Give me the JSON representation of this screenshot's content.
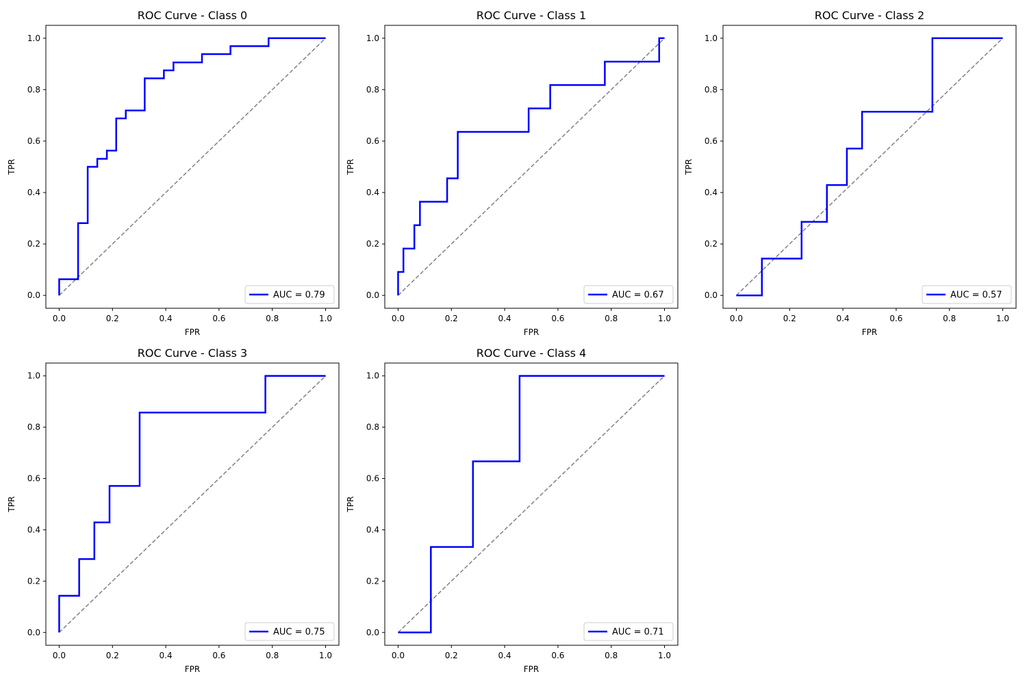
{
  "chart_data": [
    {
      "type": "line",
      "title": "ROC Curve - Class 0",
      "xlabel": "FPR",
      "ylabel": "TPR",
      "xlim": [
        -0.05,
        1.05
      ],
      "ylim": [
        -0.05,
        1.05
      ],
      "xticks": [
        "0.0",
        "0.2",
        "0.4",
        "0.6",
        "0.8",
        "1.0"
      ],
      "yticks": [
        "0.0",
        "0.2",
        "0.4",
        "0.6",
        "0.8",
        "1.0"
      ],
      "legend_position": "lower-right",
      "series": [
        {
          "name": "AUC = 0.79",
          "color": "#0000ff",
          "x": [
            0,
            0,
            0.071,
            0.071,
            0.107,
            0.107,
            0.143,
            0.143,
            0.179,
            0.179,
            0.214,
            0.214,
            0.25,
            0.25,
            0.321,
            0.321,
            0.393,
            0.393,
            0.429,
            0.429,
            0.536,
            0.536,
            0.643,
            0.643,
            0.786,
            0.786,
            1.0
          ],
          "y": [
            0,
            0.063,
            0.063,
            0.281,
            0.281,
            0.5,
            0.5,
            0.531,
            0.531,
            0.563,
            0.563,
            0.688,
            0.688,
            0.719,
            0.719,
            0.844,
            0.844,
            0.875,
            0.875,
            0.906,
            0.906,
            0.938,
            0.938,
            0.969,
            0.969,
            1.0,
            1.0
          ]
        },
        {
          "name": "",
          "color": "#808080",
          "style": "dashed",
          "x": [
            0,
            1
          ],
          "y": [
            0,
            1
          ]
        }
      ]
    },
    {
      "type": "line",
      "title": "ROC Curve - Class 1",
      "xlabel": "FPR",
      "ylabel": "TPR",
      "xlim": [
        -0.05,
        1.05
      ],
      "ylim": [
        -0.05,
        1.05
      ],
      "xticks": [
        "0.0",
        "0.2",
        "0.4",
        "0.6",
        "0.8",
        "1.0"
      ],
      "yticks": [
        "0.0",
        "0.2",
        "0.4",
        "0.6",
        "0.8",
        "1.0"
      ],
      "legend_position": "lower-right",
      "series": [
        {
          "name": "AUC = 0.67",
          "color": "#0000ff",
          "x": [
            0,
            0,
            0.02,
            0.02,
            0.061,
            0.061,
            0.082,
            0.082,
            0.184,
            0.184,
            0.224,
            0.224,
            0.49,
            0.49,
            0.571,
            0.571,
            0.776,
            0.776,
            0.98,
            0.98,
            1.0
          ],
          "y": [
            0,
            0.091,
            0.091,
            0.182,
            0.182,
            0.273,
            0.273,
            0.364,
            0.364,
            0.455,
            0.455,
            0.636,
            0.636,
            0.727,
            0.727,
            0.818,
            0.818,
            0.909,
            0.909,
            1.0,
            1.0
          ]
        },
        {
          "name": "",
          "color": "#808080",
          "style": "dashed",
          "x": [
            0,
            1
          ],
          "y": [
            0,
            1
          ]
        }
      ]
    },
    {
      "type": "line",
      "title": "ROC Curve - Class 2",
      "xlabel": "FPR",
      "ylabel": "TPR",
      "xlim": [
        -0.05,
        1.05
      ],
      "ylim": [
        -0.05,
        1.05
      ],
      "xticks": [
        "0.0",
        "0.2",
        "0.4",
        "0.6",
        "0.8",
        "1.0"
      ],
      "yticks": [
        "0.0",
        "0.2",
        "0.4",
        "0.6",
        "0.8",
        "1.0"
      ],
      "legend_position": "lower-right",
      "series": [
        {
          "name": "AUC = 0.57",
          "color": "#0000ff",
          "x": [
            0,
            0.096,
            0.096,
            0.245,
            0.245,
            0.34,
            0.34,
            0.415,
            0.415,
            0.472,
            0.472,
            0.736,
            0.736,
            1.0
          ],
          "y": [
            0,
            0,
            0.143,
            0.143,
            0.286,
            0.286,
            0.429,
            0.429,
            0.571,
            0.571,
            0.714,
            0.714,
            1.0,
            1.0
          ]
        },
        {
          "name": "",
          "color": "#808080",
          "style": "dashed",
          "x": [
            0,
            1
          ],
          "y": [
            0,
            1
          ]
        }
      ]
    },
    {
      "type": "line",
      "title": "ROC Curve - Class 3",
      "xlabel": "FPR",
      "ylabel": "TPR",
      "xlim": [
        -0.05,
        1.05
      ],
      "ylim": [
        -0.05,
        1.05
      ],
      "xticks": [
        "0.0",
        "0.2",
        "0.4",
        "0.6",
        "0.8",
        "1.0"
      ],
      "yticks": [
        "0.0",
        "0.2",
        "0.4",
        "0.6",
        "0.8",
        "1.0"
      ],
      "legend_position": "lower-right",
      "series": [
        {
          "name": "AUC = 0.75",
          "color": "#0000ff",
          "x": [
            0,
            0,
            0.075,
            0.075,
            0.132,
            0.132,
            0.189,
            0.189,
            0.302,
            0.302,
            0.774,
            0.774,
            1.0
          ],
          "y": [
            0,
            0.143,
            0.143,
            0.286,
            0.286,
            0.429,
            0.429,
            0.571,
            0.571,
            0.857,
            0.857,
            1.0,
            1.0
          ]
        },
        {
          "name": "",
          "color": "#808080",
          "style": "dashed",
          "x": [
            0,
            1
          ],
          "y": [
            0,
            1
          ]
        }
      ]
    },
    {
      "type": "line",
      "title": "ROC Curve - Class 4",
      "xlabel": "FPR",
      "ylabel": "TPR",
      "xlim": [
        -0.05,
        1.05
      ],
      "ylim": [
        -0.05,
        1.05
      ],
      "xticks": [
        "0.0",
        "0.2",
        "0.4",
        "0.6",
        "0.8",
        "1.0"
      ],
      "yticks": [
        "0.0",
        "0.2",
        "0.4",
        "0.6",
        "0.8",
        "1.0"
      ],
      "legend_position": "lower-right",
      "series": [
        {
          "name": "AUC = 0.71",
          "color": "#0000ff",
          "x": [
            0,
            0.123,
            0.123,
            0.281,
            0.281,
            0.456,
            0.456,
            1.0
          ],
          "y": [
            0,
            0,
            0.333,
            0.333,
            0.667,
            0.667,
            1.0,
            1.0
          ]
        },
        {
          "name": "",
          "color": "#808080",
          "style": "dashed",
          "x": [
            0,
            1
          ],
          "y": [
            0,
            1
          ]
        }
      ]
    }
  ]
}
